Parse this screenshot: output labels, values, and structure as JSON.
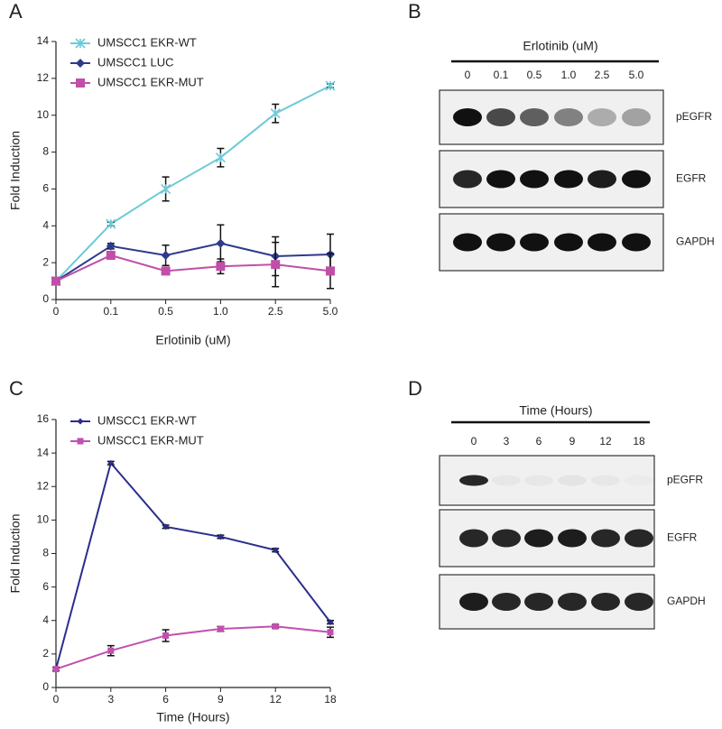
{
  "panel_labels": [
    "A",
    "B",
    "C",
    "D"
  ],
  "chart_data": [
    {
      "type": "line",
      "x_label": "Erlotinib (uM)",
      "y_label": "Fold Induction",
      "categories": [
        "0",
        "0.1",
        "0.5",
        "1.0",
        "2.5",
        "5.0"
      ],
      "ylim": [
        0,
        14
      ],
      "yticks": [
        0,
        2,
        4,
        6,
        8,
        10,
        12,
        14
      ],
      "series": [
        {
          "name": "UMSCC1 EKR-WT",
          "color": "#6ccad8",
          "marker": "x",
          "values": [
            1.0,
            4.1,
            6.0,
            7.7,
            10.1,
            11.6
          ],
          "errors": [
            0.1,
            0.1,
            0.65,
            0.5,
            0.5,
            0.1
          ]
        },
        {
          "name": "UMSCC1 LUC",
          "color": "#2e3a8c",
          "marker": "diamond",
          "values": [
            1.0,
            2.9,
            2.4,
            3.05,
            2.35,
            2.45
          ],
          "errors": [
            0.1,
            0.15,
            0.55,
            1.0,
            1.05,
            1.1
          ]
        },
        {
          "name": "UMSCC1 EKR-MUT",
          "color": "#c04fa8",
          "marker": "square",
          "values": [
            1.0,
            2.4,
            1.55,
            1.8,
            1.9,
            1.55
          ],
          "errors": [
            0.1,
            0.2,
            0.2,
            0.4,
            1.2,
            0.95
          ]
        }
      ]
    },
    {
      "type": "line",
      "x_label": "Time (Hours)",
      "y_label": "Fold Induction",
      "categories": [
        "0",
        "3",
        "6",
        "9",
        "12",
        "18"
      ],
      "ylim": [
        0,
        16
      ],
      "yticks": [
        0,
        2,
        4,
        6,
        8,
        10,
        12,
        14,
        16
      ],
      "series": [
        {
          "name": "UMSCC1 EKR-WT",
          "color": "#2a2e8c",
          "marker": "diamond",
          "values": [
            1.1,
            13.4,
            9.6,
            9.0,
            8.2,
            3.9
          ],
          "errors": [
            0.1,
            0.1,
            0.1,
            0.1,
            0.1,
            0.1
          ]
        },
        {
          "name": "UMSCC1 EKR-MUT",
          "color": "#c050b0",
          "marker": "square",
          "values": [
            1.1,
            2.2,
            3.1,
            3.5,
            3.65,
            3.3
          ],
          "errors": [
            0.1,
            0.3,
            0.35,
            0.15,
            0.1,
            0.3
          ]
        }
      ]
    }
  ],
  "blots": [
    {
      "title": "Erlotinib (uM)",
      "lanes": [
        "0",
        "0.1",
        "0.5",
        "1.0",
        "2.5",
        "5.0"
      ],
      "rows": [
        "pEGFR",
        "EGFR",
        "GAPDH"
      ]
    },
    {
      "title": "Time (Hours)",
      "lanes": [
        "0",
        "3",
        "6",
        "9",
        "12",
        "18"
      ],
      "rows": [
        "pEGFR",
        "EGFR",
        "GAPDH"
      ]
    }
  ]
}
